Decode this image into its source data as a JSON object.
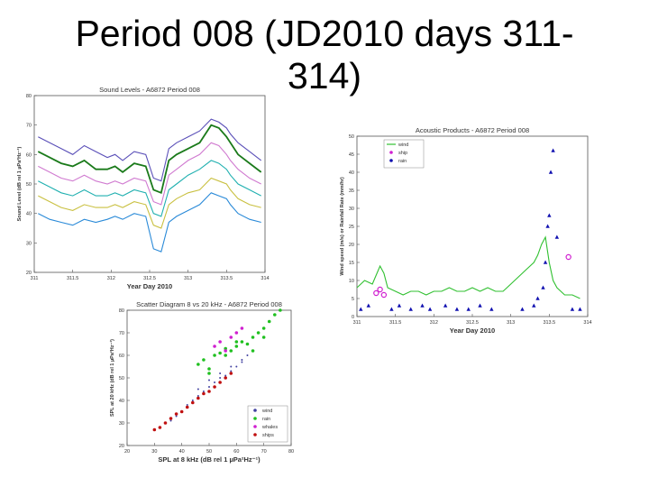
{
  "slide": {
    "title_line1": "Period 008 (JD2010 days 311-",
    "title_line2": "314)"
  },
  "chart_data": [
    {
      "type": "line",
      "title": "Sound Levels - A6872 Period 008",
      "xlabel": "Year Day 2010",
      "ylabel": "Sound Level (dB rel 1 µPa²Hz⁻¹)",
      "xlim": [
        311,
        314
      ],
      "ylim": [
        20,
        80
      ],
      "x_ticks": [
        "311",
        "311.5",
        "312",
        "312.5",
        "313",
        "313.5",
        "314"
      ],
      "y_ticks": [
        "20",
        "30",
        "40",
        "50",
        "60",
        "70",
        "80"
      ],
      "grid": false,
      "series": [
        {
          "color": "#5a4fb8",
          "x": [
            311.05,
            311.2,
            311.35,
            311.5,
            311.65,
            311.8,
            311.95,
            312.05,
            312.15,
            312.3,
            312.45,
            312.55,
            312.65,
            312.75,
            312.85,
            313.0,
            313.15,
            313.3,
            313.4,
            313.5,
            313.55,
            313.65,
            313.8,
            313.95
          ],
          "values": [
            66,
            64,
            62,
            60,
            63,
            61,
            59,
            60,
            58,
            61,
            60,
            52,
            51,
            62,
            64,
            66,
            68,
            72,
            71,
            69,
            67,
            64,
            61,
            58
          ]
        },
        {
          "color": "#1a7a1a",
          "x": [
            311.05,
            311.2,
            311.35,
            311.5,
            311.65,
            311.8,
            311.95,
            312.05,
            312.15,
            312.3,
            312.45,
            312.55,
            312.65,
            312.75,
            312.85,
            313.0,
            313.15,
            313.3,
            313.4,
            313.5,
            313.55,
            313.65,
            313.8,
            313.95
          ],
          "values": [
            61,
            59,
            57,
            56,
            58,
            55,
            55,
            56,
            54,
            57,
            56,
            48,
            47,
            58,
            60,
            62,
            64,
            70,
            69,
            66,
            64,
            60,
            57,
            54
          ]
        },
        {
          "color": "#d07ad0",
          "x": [
            311.05,
            311.2,
            311.35,
            311.5,
            311.65,
            311.8,
            311.95,
            312.05,
            312.15,
            312.3,
            312.45,
            312.55,
            312.65,
            312.75,
            312.85,
            313.0,
            313.15,
            313.3,
            313.4,
            313.5,
            313.55,
            313.65,
            313.8,
            313.95
          ],
          "values": [
            56,
            54,
            52,
            51,
            53,
            51,
            50,
            51,
            50,
            52,
            51,
            44,
            43,
            53,
            55,
            58,
            60,
            64,
            63,
            60,
            58,
            55,
            52,
            50
          ]
        },
        {
          "color": "#20b0b0",
          "x": [
            311.05,
            311.2,
            311.35,
            311.5,
            311.65,
            311.8,
            311.95,
            312.05,
            312.15,
            312.3,
            312.45,
            312.55,
            312.65,
            312.75,
            312.85,
            313.0,
            313.15,
            313.3,
            313.4,
            313.5,
            313.55,
            313.65,
            313.8,
            313.95
          ],
          "values": [
            51,
            49,
            47,
            46,
            48,
            46,
            46,
            47,
            46,
            48,
            47,
            40,
            39,
            48,
            50,
            53,
            55,
            58,
            57,
            55,
            53,
            50,
            48,
            46
          ]
        },
        {
          "color": "#c9c040",
          "x": [
            311.05,
            311.2,
            311.35,
            311.5,
            311.65,
            311.8,
            311.95,
            312.05,
            312.15,
            312.3,
            312.45,
            312.55,
            312.65,
            312.75,
            312.85,
            313.0,
            313.15,
            313.3,
            313.4,
            313.5,
            313.55,
            313.65,
            313.8,
            313.95
          ],
          "values": [
            46,
            44,
            42,
            41,
            43,
            42,
            42,
            43,
            42,
            44,
            43,
            36,
            35,
            43,
            45,
            47,
            48,
            52,
            51,
            50,
            48,
            45,
            43,
            42
          ]
        },
        {
          "color": "#2a8ad8",
          "x": [
            311.05,
            311.2,
            311.35,
            311.5,
            311.65,
            311.8,
            311.95,
            312.05,
            312.15,
            312.3,
            312.45,
            312.55,
            312.65,
            312.75,
            312.85,
            313.0,
            313.15,
            313.3,
            313.4,
            313.5,
            313.55,
            313.65,
            313.8,
            313.95
          ],
          "values": [
            40,
            38,
            37,
            36,
            38,
            37,
            38,
            39,
            38,
            40,
            39,
            28,
            27,
            37,
            39,
            41,
            43,
            47,
            46,
            45,
            43,
            40,
            38,
            37
          ]
        }
      ]
    },
    {
      "type": "scatter",
      "title": "Acoustic Products - A6872 Period 008",
      "xlabel": "Year Day 2010",
      "ylabel": "Wind speed (m/s) or Rainfall Rate (mm/hr)",
      "xlim": [
        311,
        314
      ],
      "ylim": [
        0,
        50
      ],
      "x_ticks": [
        "311",
        "311.5",
        "312",
        "312.5",
        "313",
        "313.5",
        "314"
      ],
      "y_ticks": [
        "0",
        "5",
        "10",
        "15",
        "20",
        "25",
        "30",
        "35",
        "40",
        "45",
        "50"
      ],
      "legend": [
        "wind",
        "ship",
        "rain"
      ],
      "legend_position": "top-left",
      "series": [
        {
          "name": "wind",
          "color": "#30c030",
          "mode": "line",
          "x": [
            311.0,
            311.1,
            311.2,
            311.3,
            311.35,
            311.4,
            311.5,
            311.6,
            311.7,
            311.8,
            311.9,
            312.0,
            312.1,
            312.2,
            312.3,
            312.4,
            312.5,
            312.6,
            312.7,
            312.8,
            312.9,
            313.0,
            313.1,
            313.2,
            313.3,
            313.35,
            313.4,
            313.45,
            313.5,
            313.55,
            313.6,
            313.7,
            313.8,
            313.9
          ],
          "values": [
            8,
            10,
            9,
            14,
            12,
            8,
            7,
            6,
            7,
            7,
            6,
            7,
            7,
            8,
            7,
            7,
            8,
            7,
            8,
            7,
            7,
            9,
            11,
            13,
            15,
            17,
            20,
            22,
            15,
            10,
            8,
            6,
            6,
            5
          ]
        },
        {
          "name": "ship",
          "color": "#d020d0",
          "mode": "marker",
          "x": [
            311.25,
            311.3,
            311.35,
            313.75
          ],
          "values": [
            6.5,
            7.5,
            6.0,
            16.5
          ]
        },
        {
          "name": "rain",
          "color": "#1010b0",
          "mode": "marker",
          "x": [
            311.05,
            311.15,
            311.45,
            311.55,
            311.7,
            311.85,
            311.95,
            312.15,
            312.3,
            312.45,
            312.6,
            312.75,
            313.15,
            313.3,
            313.35,
            313.42,
            313.45,
            313.48,
            313.5,
            313.52,
            313.55,
            313.6,
            313.8,
            313.9
          ],
          "values": [
            2,
            3,
            2,
            3,
            2,
            3,
            2,
            3,
            2,
            2,
            3,
            2,
            2,
            3,
            5,
            8,
            15,
            25,
            28,
            40,
            46,
            22,
            2,
            2
          ]
        }
      ]
    },
    {
      "type": "scatter",
      "title": "Scatter Diagram 8 vs 20 kHz - A6872 Period 008",
      "xlabel": "SPL at 8 kHz (dB rel 1 µPa²Hz⁻¹)",
      "ylabel": "SPL at 20 kHz (dB rel 1 µPa²Hz⁻¹)",
      "xlim": [
        20,
        80
      ],
      "ylim": [
        20,
        80
      ],
      "x_ticks": [
        "20",
        "30",
        "40",
        "50",
        "60",
        "70",
        "80"
      ],
      "y_ticks": [
        "20",
        "30",
        "40",
        "50",
        "60",
        "70",
        "80"
      ],
      "legend": [
        "wind",
        "rain",
        "whales",
        "ships"
      ],
      "legend_position": "bottom-right",
      "series": [
        {
          "name": "wind",
          "color": "#4040a0",
          "x": [
            36,
            38,
            40,
            42,
            44,
            46,
            48,
            50,
            52,
            54,
            56,
            58,
            60,
            62,
            46,
            50,
            54,
            58,
            62,
            64
          ],
          "values": [
            31,
            33,
            35,
            38,
            40,
            42,
            44,
            46,
            48,
            50,
            51,
            53,
            55,
            57,
            45,
            49,
            52,
            55,
            58,
            60
          ]
        },
        {
          "name": "rain",
          "color": "#20c020",
          "x": [
            46,
            48,
            50,
            52,
            54,
            56,
            58,
            60,
            62,
            64,
            66,
            68,
            70,
            72,
            74,
            50,
            56,
            60,
            66,
            70,
            76
          ],
          "values": [
            56,
            58,
            54,
            60,
            61,
            63,
            62,
            64,
            66,
            65,
            68,
            70,
            72,
            75,
            78,
            52,
            60,
            66,
            62,
            68,
            80
          ]
        },
        {
          "name": "whales",
          "color": "#d020d0",
          "x": [
            52,
            54,
            56,
            58,
            60,
            62
          ],
          "values": [
            64,
            66,
            62,
            68,
            70,
            72
          ]
        },
        {
          "name": "ships",
          "color": "#c01010",
          "x": [
            30,
            32,
            34,
            36,
            38,
            40,
            42,
            44,
            46,
            48,
            50,
            52,
            54,
            56,
            58
          ],
          "values": [
            27,
            28,
            30,
            32,
            34,
            35,
            37,
            39,
            41,
            43,
            44,
            46,
            48,
            50,
            52
          ]
        }
      ]
    }
  ]
}
